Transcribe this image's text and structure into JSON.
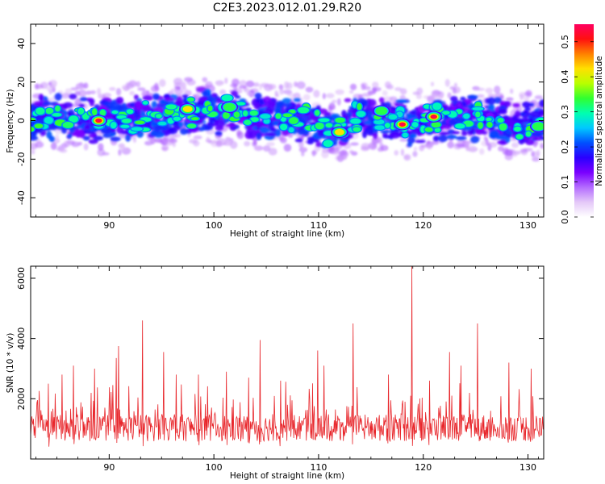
{
  "figure": {
    "title": "C2E3.2023.012.01.29.R20"
  },
  "chart_data": [
    {
      "type": "heatmap",
      "name": "spectrogram",
      "xlabel": "Height of straight line (km)",
      "ylabel": "Frequency (Hz)",
      "xlim": [
        82.5,
        131.5
      ],
      "ylim": [
        -50,
        50
      ],
      "x_ticks": [
        90,
        100,
        110,
        120,
        130
      ],
      "y_ticks": [
        -40,
        -20,
        0,
        20,
        40
      ],
      "colorbar": {
        "label": "Normalized spectral amplitude",
        "range": [
          0.0,
          0.55
        ],
        "ticks": [
          0.0,
          0.1,
          0.2,
          0.3,
          0.4,
          0.5
        ],
        "colormap": [
          "#ffffff",
          "#e4c8f8",
          "#b46cff",
          "#7a00ff",
          "#2a00ff",
          "#0050ff",
          "#00c8ff",
          "#00ffb0",
          "#30ff30",
          "#b8ff00",
          "#ffe000",
          "#ff8000",
          "#ff1010",
          "#ff0060"
        ]
      },
      "band_center_hz": [
        [
          82.5,
          1
        ],
        [
          86,
          2
        ],
        [
          90,
          0
        ],
        [
          93,
          2
        ],
        [
          96,
          3
        ],
        [
          99,
          5
        ],
        [
          102,
          4
        ],
        [
          105,
          1
        ],
        [
          108,
          1
        ],
        [
          111,
          -4
        ],
        [
          114,
          2
        ],
        [
          117,
          1
        ],
        [
          119,
          -2
        ],
        [
          121,
          2
        ],
        [
          124,
          2
        ],
        [
          127,
          1
        ],
        [
          129,
          -3
        ],
        [
          131.5,
          -2
        ]
      ],
      "band_half_width_hz": 12,
      "peaks": [
        {
          "x": 89,
          "y": 0,
          "amp": 0.55
        },
        {
          "x": 97.5,
          "y": 6,
          "amp": 0.45
        },
        {
          "x": 101.5,
          "y": 7,
          "amp": 0.4
        },
        {
          "x": 112,
          "y": -6,
          "amp": 0.45
        },
        {
          "x": 116,
          "y": 5,
          "amp": 0.35
        },
        {
          "x": 118,
          "y": -2,
          "amp": 0.55
        },
        {
          "x": 121,
          "y": 2,
          "amp": 0.55
        },
        {
          "x": 131,
          "y": -3,
          "amp": 0.35
        }
      ]
    },
    {
      "type": "line",
      "name": "snr",
      "xlabel": "Height of straight line (km)",
      "ylabel": "SNR (10 * v/v)",
      "xlim": [
        82.5,
        131.5
      ],
      "ylim": [
        0,
        6400
      ],
      "x_ticks": [
        90,
        100,
        110,
        120,
        130
      ],
      "y_ticks": [
        2000,
        4000,
        6000
      ],
      "line_color": "#e8262b",
      "baseline": 900,
      "n_points": 900,
      "peaks": [
        {
          "x": 84.2,
          "y": 2500
        },
        {
          "x": 85.5,
          "y": 2800
        },
        {
          "x": 86.6,
          "y": 3100
        },
        {
          "x": 88.6,
          "y": 3000
        },
        {
          "x": 90.7,
          "y": 3350
        },
        {
          "x": 90.9,
          "y": 3750
        },
        {
          "x": 93.2,
          "y": 4600
        },
        {
          "x": 95.2,
          "y": 3550
        },
        {
          "x": 96.4,
          "y": 2800
        },
        {
          "x": 98.5,
          "y": 2800
        },
        {
          "x": 101.2,
          "y": 2900
        },
        {
          "x": 103.3,
          "y": 2700
        },
        {
          "x": 104.4,
          "y": 3950
        },
        {
          "x": 106.4,
          "y": 2600
        },
        {
          "x": 109.9,
          "y": 3600
        },
        {
          "x": 110.5,
          "y": 3100
        },
        {
          "x": 113.3,
          "y": 4500
        },
        {
          "x": 116.7,
          "y": 2800
        },
        {
          "x": 118.9,
          "y": 6400
        },
        {
          "x": 120.6,
          "y": 2600
        },
        {
          "x": 122.5,
          "y": 3550
        },
        {
          "x": 123.6,
          "y": 3100
        },
        {
          "x": 125.2,
          "y": 4500
        },
        {
          "x": 128.2,
          "y": 3200
        },
        {
          "x": 130.3,
          "y": 3000
        }
      ]
    }
  ]
}
